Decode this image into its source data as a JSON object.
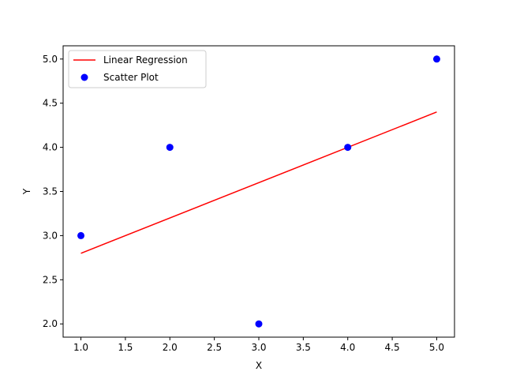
{
  "chart_data": {
    "type": "scatter",
    "title": "",
    "xlabel": "X",
    "ylabel": "Y",
    "xlim": [
      0.8,
      5.2
    ],
    "ylim": [
      1.85,
      5.15
    ],
    "xticks": [
      "1.0",
      "1.5",
      "2.0",
      "2.5",
      "3.0",
      "3.5",
      "4.0",
      "4.5",
      "5.0"
    ],
    "yticks": [
      "2.0",
      "2.5",
      "3.0",
      "3.5",
      "4.0",
      "4.5",
      "5.0"
    ],
    "grid": false,
    "legend_position": "top-left",
    "series": [
      {
        "name": "Linear Regression",
        "kind": "line",
        "color": "#ff0000",
        "x": [
          1,
          5
        ],
        "y": [
          2.8,
          4.4
        ]
      },
      {
        "name": "Scatter Plot",
        "kind": "scatter",
        "color": "#0000ff",
        "x": [
          1,
          2,
          3,
          4,
          5
        ],
        "y": [
          3,
          4,
          2,
          4,
          5
        ]
      }
    ]
  }
}
